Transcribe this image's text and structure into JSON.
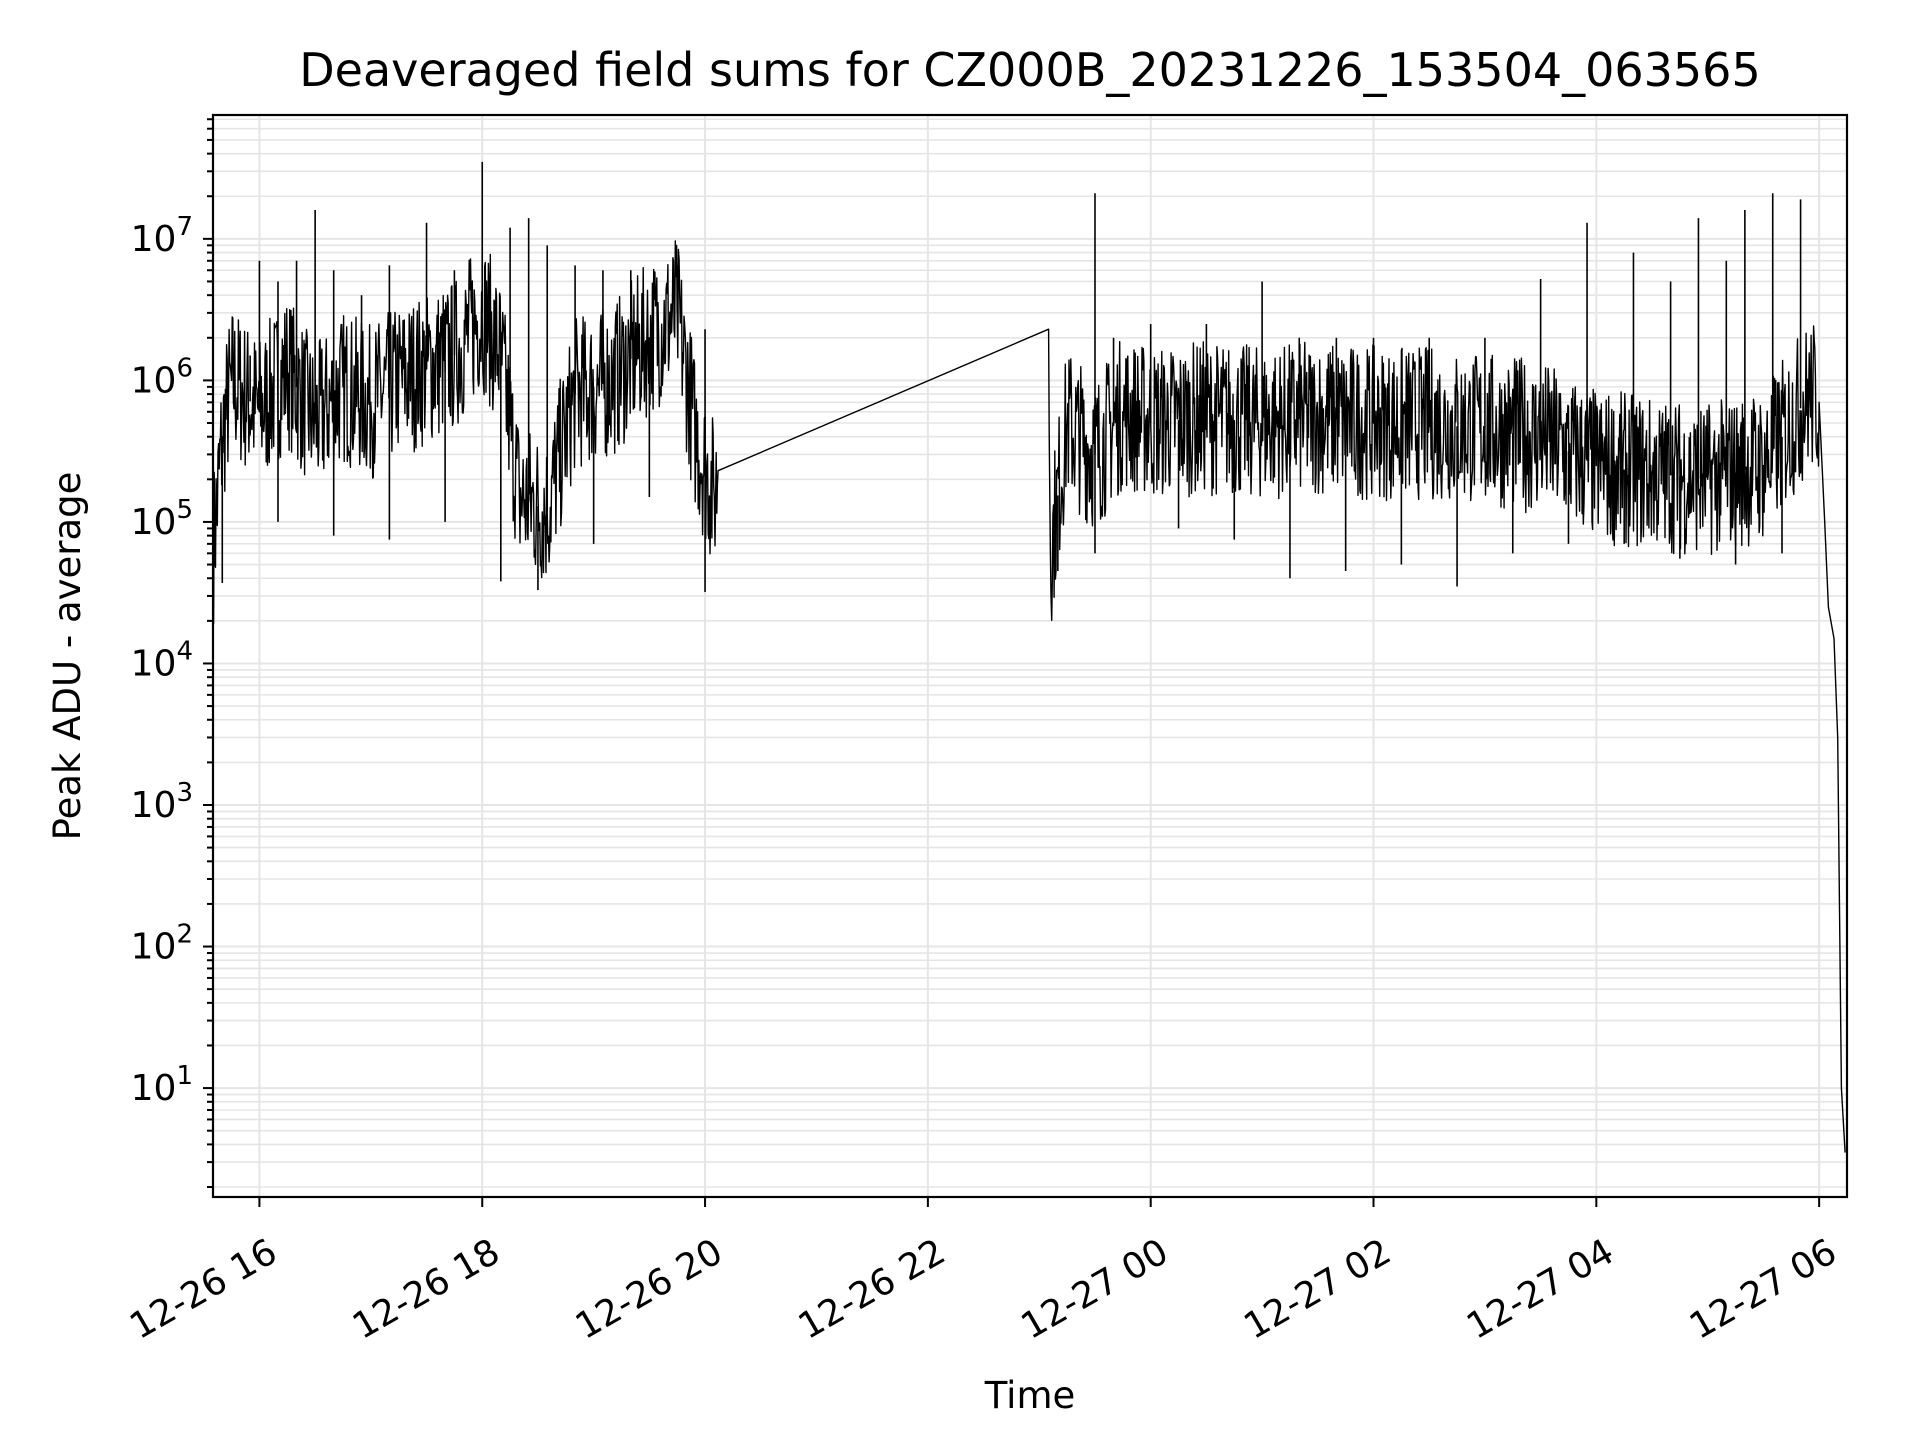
{
  "chart_data": {
    "type": "line",
    "title": "Deaveraged field sums for CZ000B_20231226_153504_063565",
    "xlabel": "Time",
    "ylabel": "Peak ADU - average",
    "yscale": "log",
    "ylim": [
      1.7,
      75000000
    ],
    "xlim": [
      "12-26 15:35",
      "12-27 06:15"
    ],
    "grid": true,
    "line_color": "#000000",
    "grid_color": "#e5e5e5",
    "x_ticks": [
      {
        "t": "12-26 16:00",
        "label": "12-26 16"
      },
      {
        "t": "12-26 18:00",
        "label": "12-26 18"
      },
      {
        "t": "12-26 20:00",
        "label": "12-26 20"
      },
      {
        "t": "12-26 22:00",
        "label": "12-26 22"
      },
      {
        "t": "12-27 00:00",
        "label": "12-27 00"
      },
      {
        "t": "12-27 02:00",
        "label": "12-27 02"
      },
      {
        "t": "12-27 04:00",
        "label": "12-27 04"
      },
      {
        "t": "12-27 06:00",
        "label": "12-27 06"
      }
    ],
    "y_ticks": [
      {
        "value": 10,
        "base": "10",
        "exp": "1"
      },
      {
        "value": 100,
        "base": "10",
        "exp": "2"
      },
      {
        "value": 1000,
        "base": "10",
        "exp": "3"
      },
      {
        "value": 10000,
        "base": "10",
        "exp": "4"
      },
      {
        "value": 100000,
        "base": "10",
        "exp": "5"
      },
      {
        "value": 1000000,
        "base": "10",
        "exp": "6"
      },
      {
        "value": 10000000,
        "base": "10",
        "exp": "7"
      }
    ],
    "series": [
      {
        "points": [
          [
            "12-26 15:35",
            60000
          ],
          [
            "12-26 15:40",
            400000
          ],
          [
            "12-26 15:45",
            1000000
          ],
          [
            "12-26 16:00",
            600000
          ],
          [
            "12-26 16:15",
            1200000
          ],
          [
            "12-26 16:30",
            500000
          ],
          [
            "12-26 16:45",
            900000
          ],
          [
            "12-26 17:00",
            700000
          ],
          [
            "12-26 17:15",
            1000000
          ],
          [
            "12-26 17:30",
            1200000
          ],
          [
            "12-26 17:45",
            1500000
          ],
          [
            "12-26 18:00",
            3000000
          ],
          [
            "12-26 18:10",
            1500000
          ],
          [
            "12-26 18:20",
            150000
          ],
          [
            "12-26 18:35",
            120000
          ],
          [
            "12-26 18:50",
            800000
          ],
          [
            "12-26 19:10",
            1000000
          ],
          [
            "12-26 19:30",
            2000000
          ],
          [
            "12-26 19:45",
            3000000
          ],
          [
            "12-26 19:55",
            400000
          ],
          [
            "12-26 20:05",
            150000
          ],
          [
            "12-26 20:07",
            230000
          ],
          [
            "12-26 23:05",
            2300000
          ],
          [
            "12-26 23:06",
            60000
          ],
          [
            "12-26 23:15",
            500000
          ],
          [
            "12-26 23:30",
            300000
          ],
          [
            "12-26 23:45",
            600000
          ],
          [
            "12-27 00:00",
            500000
          ],
          [
            "12-27 00:30",
            550000
          ],
          [
            "12-27 01:00",
            500000
          ],
          [
            "12-27 01:30",
            550000
          ],
          [
            "12-27 02:00",
            500000
          ],
          [
            "12-27 02:30",
            500000
          ],
          [
            "12-27 03:00",
            450000
          ],
          [
            "12-27 03:30",
            400000
          ],
          [
            "12-27 04:00",
            250000
          ],
          [
            "12-27 04:30",
            220000
          ],
          [
            "12-27 05:00",
            200000
          ],
          [
            "12-27 05:30",
            250000
          ],
          [
            "12-27 05:55",
            800000
          ],
          [
            "12-27 06:00",
            700000
          ],
          [
            "12-27 06:03",
            100000
          ],
          [
            "12-27 06:05",
            25000
          ],
          [
            "12-27 06:08",
            15000
          ],
          [
            "12-27 06:10",
            3000
          ],
          [
            "12-27 06:12",
            10
          ],
          [
            "12-27 06:14",
            3.5
          ]
        ],
        "spikes": [
          [
            "12-26 15:55",
            1500000
          ],
          [
            "12-26 16:00",
            7000000
          ],
          [
            "12-26 16:10",
            5000000
          ],
          [
            "12-26 16:20",
            7000000
          ],
          [
            "12-26 16:30",
            16000000
          ],
          [
            "12-26 16:40",
            6000000
          ],
          [
            "12-26 16:55",
            4000000
          ],
          [
            "12-26 17:10",
            6500000
          ],
          [
            "12-26 17:30",
            13000000
          ],
          [
            "12-26 17:45",
            6000000
          ],
          [
            "12-26 18:00",
            35000000
          ],
          [
            "12-26 18:15",
            12000000
          ],
          [
            "12-26 18:25",
            14000000
          ],
          [
            "12-26 18:35",
            9000000
          ],
          [
            "12-26 18:50",
            6500000
          ],
          [
            "12-26 19:05",
            6000000
          ],
          [
            "12-26 19:20",
            6000000
          ],
          [
            "12-26 19:45",
            6500000
          ],
          [
            "12-26 20:00",
            2300000
          ],
          [
            "12-26 23:30",
            21000000
          ],
          [
            "12-26 23:40",
            2000000
          ],
          [
            "12-27 00:00",
            2500000
          ],
          [
            "12-27 00:30",
            2500000
          ],
          [
            "12-27 01:00",
            5000000
          ],
          [
            "12-27 01:20",
            2000000
          ],
          [
            "12-27 01:40",
            2000000
          ],
          [
            "12-27 02:00",
            2000000
          ],
          [
            "12-27 02:30",
            2000000
          ],
          [
            "12-27 03:00",
            2000000
          ],
          [
            "12-27 03:30",
            5200000
          ],
          [
            "12-27 03:55",
            13000000
          ],
          [
            "12-27 04:20",
            8000000
          ],
          [
            "12-27 04:40",
            5000000
          ],
          [
            "12-27 04:55",
            14000000
          ],
          [
            "12-27 05:10",
            7000000
          ],
          [
            "12-27 05:20",
            16000000
          ],
          [
            "12-27 05:35",
            21000000
          ],
          [
            "12-27 05:50",
            19000000
          ]
        ],
        "dips": [
          [
            "12-26 15:40",
            37000
          ],
          [
            "12-26 16:10",
            100000
          ],
          [
            "12-26 16:40",
            80000
          ],
          [
            "12-26 17:10",
            75000
          ],
          [
            "12-26 17:40",
            100000
          ],
          [
            "12-26 18:10",
            38000
          ],
          [
            "12-26 18:30",
            33000
          ],
          [
            "12-26 19:00",
            70000
          ],
          [
            "12-26 19:30",
            150000
          ],
          [
            "12-26 20:00",
            32000
          ],
          [
            "12-26 23:10",
            45000
          ],
          [
            "12-26 23:30",
            60000
          ],
          [
            "12-27 00:15",
            90000
          ],
          [
            "12-27 00:45",
            75000
          ],
          [
            "12-27 01:15",
            40000
          ],
          [
            "12-27 01:45",
            45000
          ],
          [
            "12-27 02:15",
            50000
          ],
          [
            "12-27 02:45",
            35000
          ],
          [
            "12-27 03:15",
            60000
          ],
          [
            "12-27 03:45",
            70000
          ],
          [
            "12-27 04:15",
            70000
          ],
          [
            "12-27 04:45",
            55000
          ],
          [
            "12-27 05:15",
            50000
          ],
          [
            "12-27 05:40",
            60000
          ]
        ]
      }
    ]
  }
}
